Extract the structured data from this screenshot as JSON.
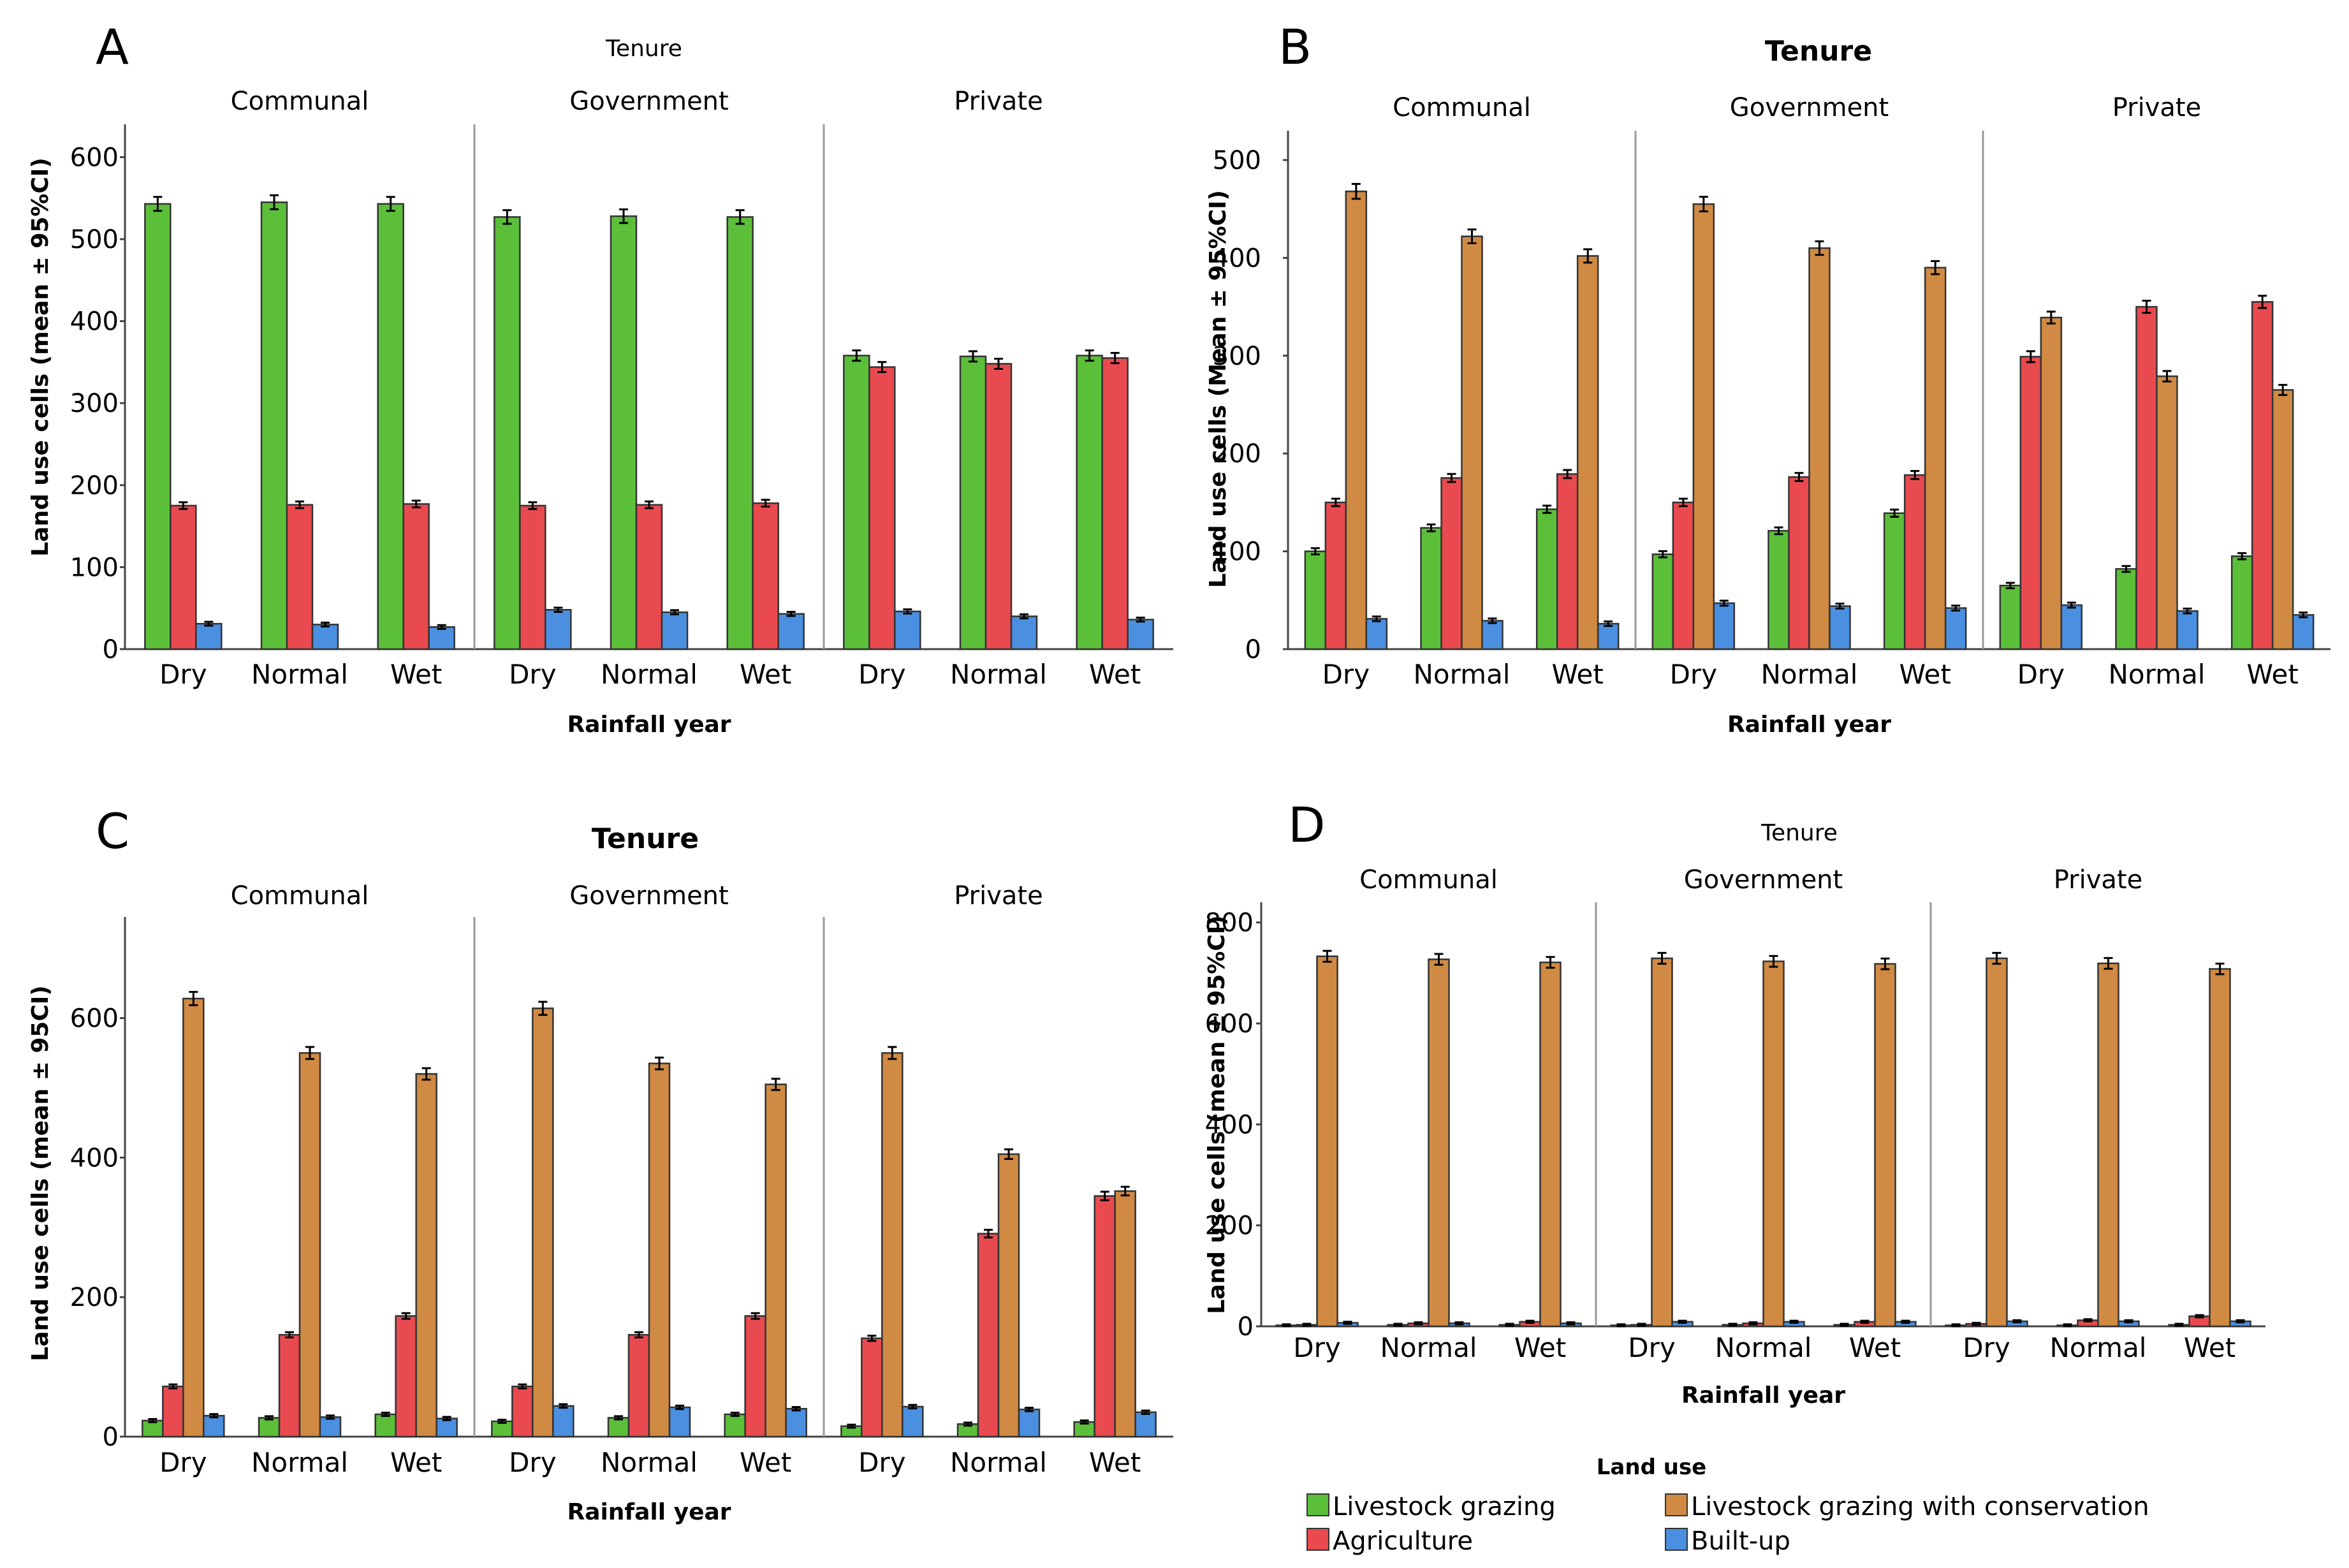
{
  "colors": {
    "livestock_grazing": "#5cbf3a",
    "agriculture": "#e84a4f",
    "conservation": "#d08a43",
    "built_up": "#4b8fe0"
  },
  "legend": {
    "title": "Land use",
    "items": [
      {
        "key": "livestock_grazing",
        "label": "Livestock grazing",
        "icon": "green-square"
      },
      {
        "key": "agriculture",
        "label": "Agriculture",
        "icon": "red-square"
      },
      {
        "key": "conservation",
        "label": "Livestock grazing with conservation",
        "icon": "orange-square"
      },
      {
        "key": "built_up",
        "label": "Built-up",
        "icon": "blue-square"
      }
    ]
  },
  "chart_data": [
    {
      "panel": "A",
      "type": "bar",
      "title": "Tenure",
      "xlabel": "Rainfall year",
      "ylabel": "Land use cells (mean ± 95%CI)",
      "ylim": [
        0,
        640
      ],
      "yticks": [
        "0",
        "100",
        "200",
        "300",
        "400",
        "500",
        "600"
      ],
      "facets": [
        "Communal",
        "Government",
        "Private"
      ],
      "categories": [
        "Dry",
        "Normal",
        "Wet"
      ],
      "series": [
        {
          "key": "livestock_grazing",
          "values": [
            [
              543,
              545,
              543
            ],
            [
              527,
              528,
              527
            ],
            [
              358,
              357,
              358
            ]
          ]
        },
        {
          "key": "agriculture",
          "values": [
            [
              175,
              176,
              177
            ],
            [
              175,
              176,
              178
            ],
            [
              344,
              348,
              355
            ]
          ]
        },
        {
          "key": "built_up",
          "values": [
            [
              31,
              30,
              27
            ],
            [
              48,
              45,
              43
            ],
            [
              46,
              40,
              36
            ]
          ]
        }
      ]
    },
    {
      "panel": "B",
      "type": "bar",
      "title": "Tenure",
      "xlabel": "Rainfall year",
      "ylabel": "Land use cells (Mean ± 95%CI)",
      "ylim": [
        0,
        530
      ],
      "yticks": [
        "0",
        "100",
        "200",
        "300",
        "400",
        "500"
      ],
      "facets": [
        "Communal",
        "Government",
        "Private"
      ],
      "categories": [
        "Dry",
        "Normal",
        "Wet"
      ],
      "series": [
        {
          "key": "livestock_grazing",
          "values": [
            [
              100,
              124,
              143
            ],
            [
              97,
              121,
              139
            ],
            [
              65,
              82,
              95
            ]
          ]
        },
        {
          "key": "agriculture",
          "values": [
            [
              150,
              175,
              179
            ],
            [
              150,
              176,
              178
            ],
            [
              299,
              350,
              355
            ]
          ]
        },
        {
          "key": "conservation",
          "values": [
            [
              468,
              422,
              402
            ],
            [
              455,
              410,
              390
            ],
            [
              339,
              279,
              265
            ]
          ]
        },
        {
          "key": "built_up",
          "values": [
            [
              31,
              29,
              26
            ],
            [
              47,
              44,
              42
            ],
            [
              45,
              39,
              35
            ]
          ]
        }
      ]
    },
    {
      "panel": "C",
      "type": "bar",
      "title": "Tenure",
      "xlabel": "Rainfall year",
      "ylabel": "Land use cells (mean ± 95CI)",
      "ylim": [
        0,
        745
      ],
      "yticks": [
        "0",
        "200",
        "400",
        "600"
      ],
      "facets": [
        "Communal",
        "Government",
        "Private"
      ],
      "categories": [
        "Dry",
        "Normal",
        "Wet"
      ],
      "series": [
        {
          "key": "livestock_grazing",
          "values": [
            [
              23,
              27,
              32
            ],
            [
              22,
              27,
              32
            ],
            [
              15,
              18,
              21
            ]
          ]
        },
        {
          "key": "agriculture",
          "values": [
            [
              72,
              146,
              173
            ],
            [
              72,
              146,
              173
            ],
            [
              141,
              291,
              345
            ]
          ]
        },
        {
          "key": "conservation",
          "values": [
            [
              628,
              550,
              520
            ],
            [
              614,
              535,
              505
            ],
            [
              550,
              405,
              352
            ]
          ]
        },
        {
          "key": "built_up",
          "values": [
            [
              30,
              28,
              26
            ],
            [
              44,
              42,
              40
            ],
            [
              43,
              39,
              35
            ]
          ]
        }
      ]
    },
    {
      "panel": "D",
      "type": "bar",
      "title": "Tenure",
      "xlabel": "Rainfall year",
      "ylabel": "Land use cells (mean ± 95%CI)",
      "ylim": [
        0,
        840
      ],
      "yticks": [
        "0",
        "200",
        "400",
        "600",
        "800"
      ],
      "facets": [
        "Communal",
        "Government",
        "Private"
      ],
      "categories": [
        "Dry",
        "Normal",
        "Wet"
      ],
      "series": [
        {
          "key": "livestock_grazing",
          "values": [
            [
              2,
              3,
              3
            ],
            [
              2,
              3,
              3
            ],
            [
              2,
              2,
              3
            ]
          ]
        },
        {
          "key": "agriculture",
          "values": [
            [
              3,
              6,
              9
            ],
            [
              3,
              6,
              9
            ],
            [
              5,
              12,
              20
            ]
          ]
        },
        {
          "key": "conservation",
          "values": [
            [
              733,
              727,
              721
            ],
            [
              729,
              723,
              718
            ],
            [
              729,
              719,
              708
            ]
          ]
        },
        {
          "key": "built_up",
          "values": [
            [
              7,
              6,
              6
            ],
            [
              9,
              9,
              9
            ],
            [
              10,
              10,
              10
            ]
          ]
        }
      ]
    }
  ]
}
